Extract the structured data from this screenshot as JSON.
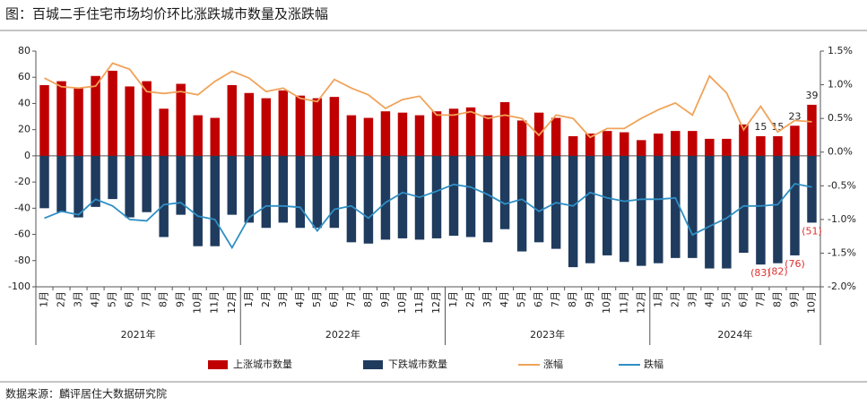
{
  "chart_data": {
    "type": "bar-line",
    "title": "图：百城二手住宅市场均价环比涨跌城市数量及涨跌幅",
    "source": "数据来源：麟评居住大数据研究院",
    "categories": [
      "1月",
      "2月",
      "3月",
      "4月",
      "5月",
      "6月",
      "7月",
      "8月",
      "9月",
      "10月",
      "11月",
      "12月",
      "1月",
      "2月",
      "3月",
      "4月",
      "5月",
      "6月",
      "7月",
      "8月",
      "9月",
      "10月",
      "11月",
      "12月",
      "1月",
      "2月",
      "3月",
      "4月",
      "5月",
      "6月",
      "7月",
      "8月",
      "9月",
      "10月",
      "11月",
      "12月",
      "1月",
      "2月",
      "3月",
      "4月",
      "5月",
      "6月",
      "7月",
      "8月",
      "9月",
      "10月"
    ],
    "year_groups": [
      "2021年",
      "2022年",
      "2023年",
      "2024年"
    ],
    "ylim": [
      -100,
      80
    ],
    "yticks": [
      80,
      60,
      40,
      20,
      0,
      -20,
      -40,
      -60,
      -80,
      -100
    ],
    "y2lim": [
      -2.0,
      1.5
    ],
    "y2ticks": [
      {
        "value": 1.5,
        "label": "1.5%"
      },
      {
        "value": 1.0,
        "label": "1.0%"
      },
      {
        "value": 0.5,
        "label": "0.5%"
      },
      {
        "value": 0.0,
        "label": "0.0%"
      },
      {
        "value": -0.5,
        "label": "-0.5%"
      },
      {
        "value": -1.0,
        "label": "-1.0%"
      },
      {
        "value": -1.5,
        "label": "-1.5%"
      },
      {
        "value": -2.0,
        "label": "-2.0%"
      }
    ],
    "series": [
      {
        "name": "上涨城市数量",
        "kind": "bar",
        "color": "#c00000",
        "values": [
          54,
          57,
          52,
          61,
          65,
          53,
          57,
          36,
          55,
          31,
          29,
          54,
          48,
          44,
          50,
          46,
          44,
          45,
          31,
          29,
          34,
          33,
          31,
          34,
          36,
          37,
          31,
          41,
          27,
          33,
          29,
          15,
          17,
          19,
          18,
          12,
          17,
          19,
          19,
          13,
          13,
          24,
          15,
          15,
          23,
          39
        ],
        "value_labels": [
          null,
          null,
          null,
          null,
          null,
          null,
          null,
          null,
          null,
          null,
          null,
          null,
          null,
          null,
          null,
          null,
          null,
          null,
          null,
          null,
          null,
          null,
          null,
          null,
          null,
          null,
          null,
          null,
          null,
          null,
          null,
          null,
          null,
          null,
          null,
          null,
          null,
          null,
          null,
          null,
          null,
          null,
          "15",
          "15",
          "23",
          "39"
        ]
      },
      {
        "name": "下跌城市数量",
        "kind": "bar",
        "color": "#1f3b5e",
        "values": [
          -40,
          -43,
          -47,
          -39,
          -33,
          -47,
          -43,
          -62,
          -45,
          -69,
          -69,
          -45,
          -51,
          -55,
          -51,
          -55,
          -55,
          -55,
          -66,
          -67,
          -64,
          -63,
          -64,
          -63,
          -61,
          -62,
          -66,
          -56,
          -73,
          -66,
          -71,
          -85,
          -82,
          -76,
          -81,
          -84,
          -82,
          -78,
          -78,
          -86,
          -86,
          -74,
          -83,
          -82,
          -76,
          -51
        ],
        "value_labels": [
          null,
          null,
          null,
          null,
          null,
          null,
          null,
          null,
          null,
          null,
          null,
          null,
          null,
          null,
          null,
          null,
          null,
          null,
          null,
          null,
          null,
          null,
          null,
          null,
          null,
          null,
          null,
          null,
          null,
          null,
          null,
          null,
          null,
          null,
          null,
          null,
          null,
          null,
          null,
          null,
          null,
          null,
          "(83)",
          "(82)",
          "(76)",
          "(51)"
        ]
      },
      {
        "name": "涨幅",
        "kind": "line",
        "axis": "y2",
        "color": "#f0a35a",
        "values": [
          1.1,
          0.97,
          0.95,
          0.98,
          1.32,
          1.23,
          0.9,
          0.87,
          0.9,
          0.85,
          1.05,
          1.2,
          1.1,
          0.9,
          0.95,
          0.8,
          0.75,
          1.08,
          0.95,
          0.85,
          0.65,
          0.78,
          0.83,
          0.55,
          0.55,
          0.6,
          0.5,
          0.55,
          0.5,
          0.25,
          0.55,
          0.5,
          0.22,
          0.35,
          0.35,
          0.5,
          0.63,
          0.73,
          0.55,
          1.13,
          0.88,
          0.33,
          0.68,
          0.3,
          0.47,
          0.45
        ]
      },
      {
        "name": "跌幅",
        "kind": "line",
        "axis": "y2",
        "color": "#2f8fc4",
        "values": [
          -0.98,
          -0.88,
          -0.93,
          -0.7,
          -0.8,
          -1.0,
          -1.02,
          -0.78,
          -0.75,
          -0.95,
          -1.0,
          -1.42,
          -0.97,
          -0.8,
          -0.8,
          -0.82,
          -1.17,
          -0.85,
          -0.8,
          -0.98,
          -0.75,
          -0.6,
          -0.67,
          -0.58,
          -0.48,
          -0.52,
          -0.63,
          -0.77,
          -0.7,
          -0.88,
          -0.75,
          -0.8,
          -0.6,
          -0.68,
          -0.73,
          -0.7,
          -0.7,
          -0.68,
          -1.23,
          -1.1,
          -0.98,
          -0.8,
          -0.8,
          -0.78,
          -0.47,
          -0.52
        ]
      }
    ]
  }
}
